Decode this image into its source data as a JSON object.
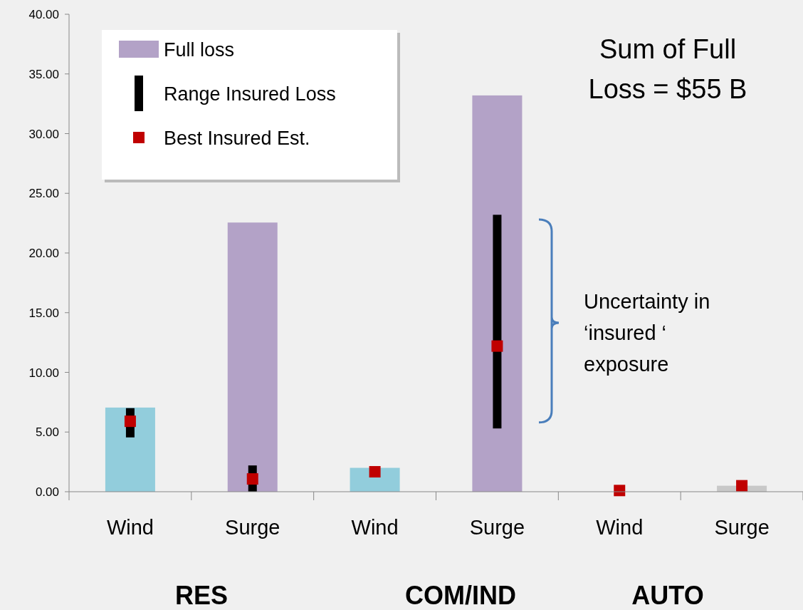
{
  "chart_data": {
    "type": "bar",
    "categories": [
      "Wind",
      "Surge",
      "Wind",
      "Surge",
      "Wind",
      "Surge"
    ],
    "series": [
      {
        "name": "Full loss",
        "color": "#b3a2c7",
        "colors": [
          "#92cddc",
          "#b3a2c7",
          "#92cddc",
          "#b3a2c7",
          "#b3a2c7",
          "#c8c8c8"
        ],
        "values": [
          7.05,
          22.55,
          2.0,
          33.2,
          0,
          0.5
        ]
      },
      {
        "name": "Range Insured Loss",
        "type": "bar",
        "color": "#000000",
        "base": [
          4.55,
          0,
          null,
          5.3,
          null,
          null
        ],
        "values": [
          2.45,
          2.2,
          null,
          17.9,
          null,
          null
        ]
      },
      {
        "name": "Best Insured Est.",
        "type": "scatter",
        "marker": "square",
        "color": "#c00000",
        "values": [
          5.9,
          1.07,
          1.67,
          12.2,
          0.1,
          0.5
        ]
      }
    ],
    "ylim": [
      0,
      40
    ],
    "yticks": [
      {
        "value": 0,
        "label": "0.00"
      },
      {
        "value": 5,
        "label": "5.00"
      },
      {
        "value": 10,
        "label": "10.00"
      },
      {
        "value": 15,
        "label": "15.00"
      },
      {
        "value": 20,
        "label": "20.00"
      },
      {
        "value": 25,
        "label": "25.00"
      },
      {
        "value": 30,
        "label": "30.00"
      },
      {
        "value": 35,
        "label": "35.00"
      },
      {
        "value": 40,
        "label": "40.00"
      }
    ],
    "grid": false,
    "legend": "top left",
    "annotations": [
      "Sum of Full Loss = $55 B",
      "Uncertainty in ‘insured ‘ exposure",
      "RES",
      "COM/IND",
      "AUTO"
    ]
  }
}
